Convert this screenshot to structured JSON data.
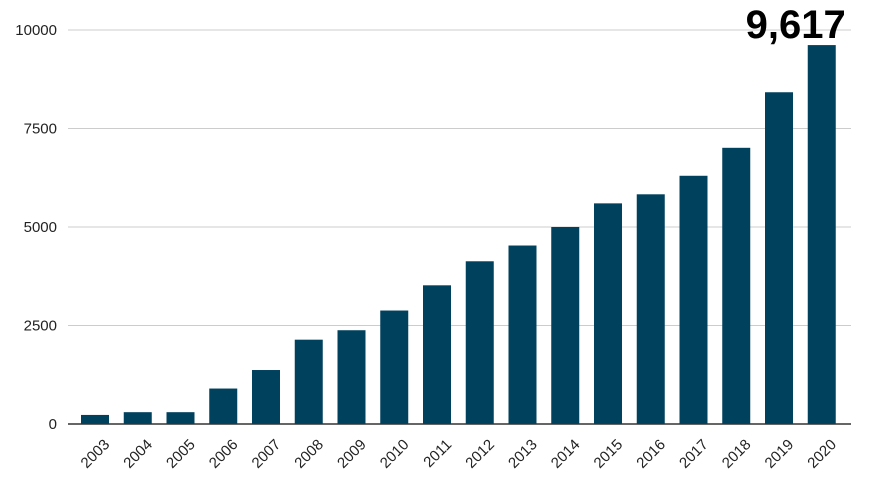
{
  "chart_data": {
    "type": "bar",
    "categories": [
      "2003",
      "2004",
      "2005",
      "2006",
      "2007",
      "2008",
      "2009",
      "2010",
      "2011",
      "2012",
      "2013",
      "2014",
      "2015",
      "2016",
      "2017",
      "2018",
      "2019",
      "2020"
    ],
    "values": [
      230,
      300,
      300,
      900,
      1370,
      2140,
      2380,
      2880,
      3520,
      4130,
      4530,
      5000,
      5600,
      5830,
      6300,
      7010,
      8420,
      9617
    ],
    "yticks": [
      0,
      2500,
      5000,
      7500,
      10000
    ],
    "ylim": [
      0,
      10000
    ],
    "grid": true,
    "bar_color": "#00415e",
    "grid_color": "#cccccc",
    "callout": {
      "category": "2020",
      "text": "9,617"
    }
  }
}
